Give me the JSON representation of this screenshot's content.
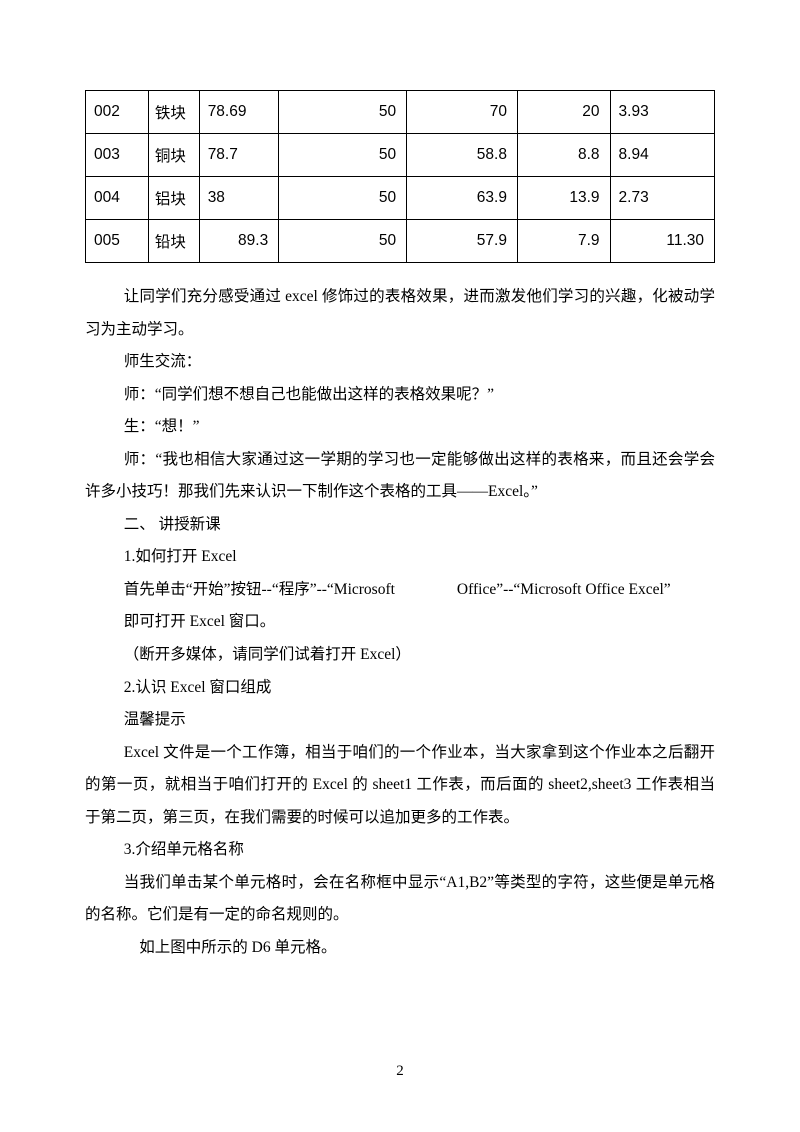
{
  "table": {
    "rows": [
      {
        "c0": "002",
        "c1": "铁块",
        "c2": "78.69",
        "c2align": "al-left",
        "c3": "50",
        "c4": "70",
        "c5": "20",
        "c6": "3.93",
        "c6align": "al-left"
      },
      {
        "c0": "003",
        "c1": "铜块",
        "c2": "78.7",
        "c2align": "al-left",
        "c3": "50",
        "c4": "58.8",
        "c5": "8.8",
        "c6": "8.94",
        "c6align": "al-left"
      },
      {
        "c0": "004",
        "c1": "铝块",
        "c2": "38",
        "c2align": "al-left",
        "c3": "50",
        "c4": "63.9",
        "c5": "13.9",
        "c6": "2.73",
        "c6align": "al-left"
      },
      {
        "c0": "005",
        "c1": "铅块",
        "c2": "89.3",
        "c2align": "al-right",
        "c3": "50",
        "c4": "57.9",
        "c5": "7.9",
        "c6": "11.30",
        "c6align": "al-right"
      }
    ]
  },
  "paragraphs": [
    "让同学们充分感受通过 excel 修饰过的表格效果，进而激发他们学习的兴趣，化被动学习为主动学习。",
    "师生交流：",
    "师：“同学们想不想自己也能做出这样的表格效果呢？”",
    "生：“想！”",
    "师：“我也相信大家通过这一学期的学习也一定能够做出这样的表格来，而且还会学会许多小技巧！那我们先来认识一下制作这个表格的工具——Excel。”",
    "二、 讲授新课",
    "1.如何打开 Excel",
    "首先单击“开始”按钮--“程序”--“Microsoft　　　　Office”--“Microsoft Office Excel”",
    "即可打开 Excel 窗口。",
    "（断开多媒体，请同学们试着打开 Excel）",
    "2.认识 Excel 窗口组成",
    "温馨提示",
    "Excel 文件是一个工作簿，相当于咱们的一个作业本，当大家拿到这个作业本之后翻开的第一页，就相当于咱们打开的 Excel 的 sheet1 工作表，而后面的 sheet2,sheet3 工作表相当于第二页，第三页，在我们需要的时候可以追加更多的工作表。",
    "3.介绍单元格名称",
    "当我们单击某个单元格时，会在名称框中显示“A1,B2”等类型的字符，这些便是单元格的名称。它们是有一定的命名规则的。",
    "　如上图中所示的 D6 单元格。"
  ],
  "pageNumber": "2"
}
